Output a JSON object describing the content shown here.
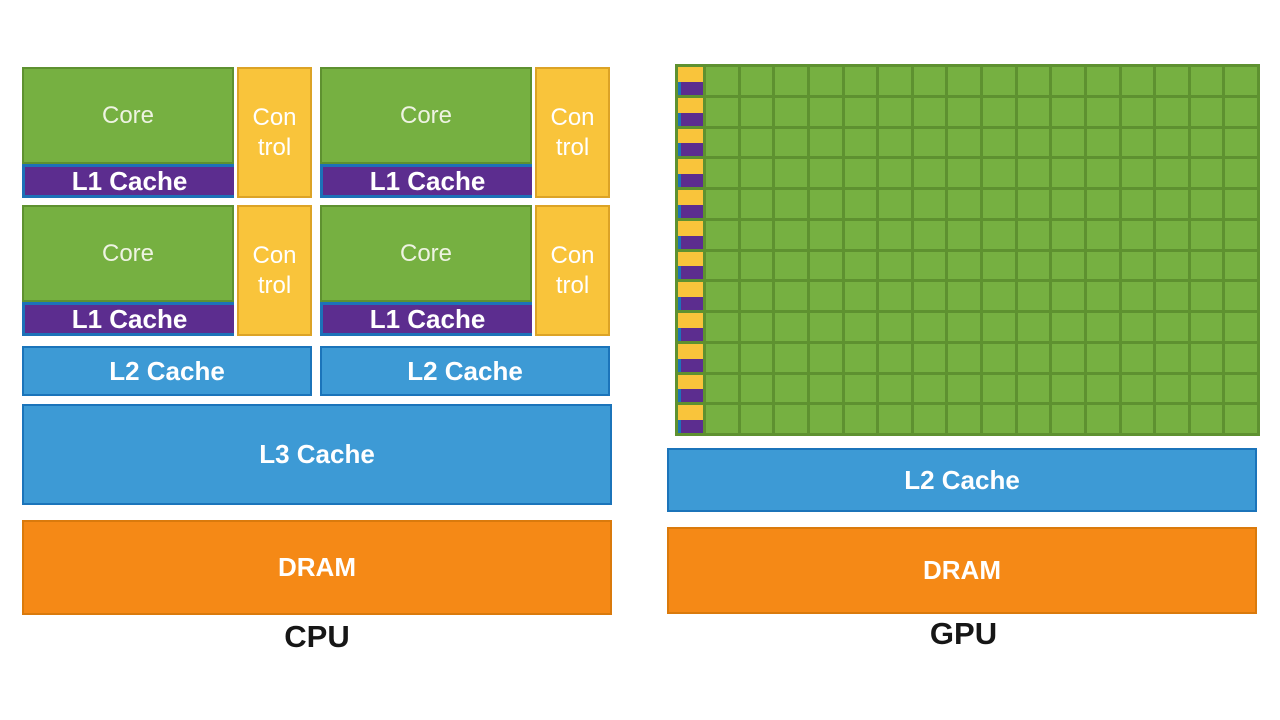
{
  "cpu": {
    "label": "CPU",
    "core_units": [
      {
        "core_label": "Core",
        "control_lines": [
          "Con",
          "trol"
        ],
        "l1_label": "L1 Cache"
      },
      {
        "core_label": "Core",
        "control_lines": [
          "Con",
          "trol"
        ],
        "l1_label": "L1 Cache"
      },
      {
        "core_label": "Core",
        "control_lines": [
          "Con",
          "trol"
        ],
        "l1_label": "L1 Cache"
      },
      {
        "core_label": "Core",
        "control_lines": [
          "Con",
          "trol"
        ],
        "l1_label": "L1 Cache"
      }
    ],
    "l2_labels": [
      "L2 Cache",
      "L2 Cache"
    ],
    "l3_label": "L3 Cache",
    "dram_label": "DRAM"
  },
  "gpu": {
    "label": "GPU",
    "sm_grid": {
      "rows": 12,
      "cols": 16
    },
    "l2_label": "L2 Cache",
    "dram_label": "DRAM"
  },
  "colors": {
    "core_green": "#76b041",
    "green_border": "#5e9130",
    "control_yellow": "#f9c43b",
    "yellow_border": "#dca326",
    "l1_purple": "#5c2d8f",
    "accent_blue": "#1d72b8",
    "cache_blue": "#3d9ad5",
    "cache_blue_border": "#1b74ba",
    "dram_orange": "#f58916",
    "dram_orange_border": "#da7a0c",
    "label_black": "#161616"
  }
}
